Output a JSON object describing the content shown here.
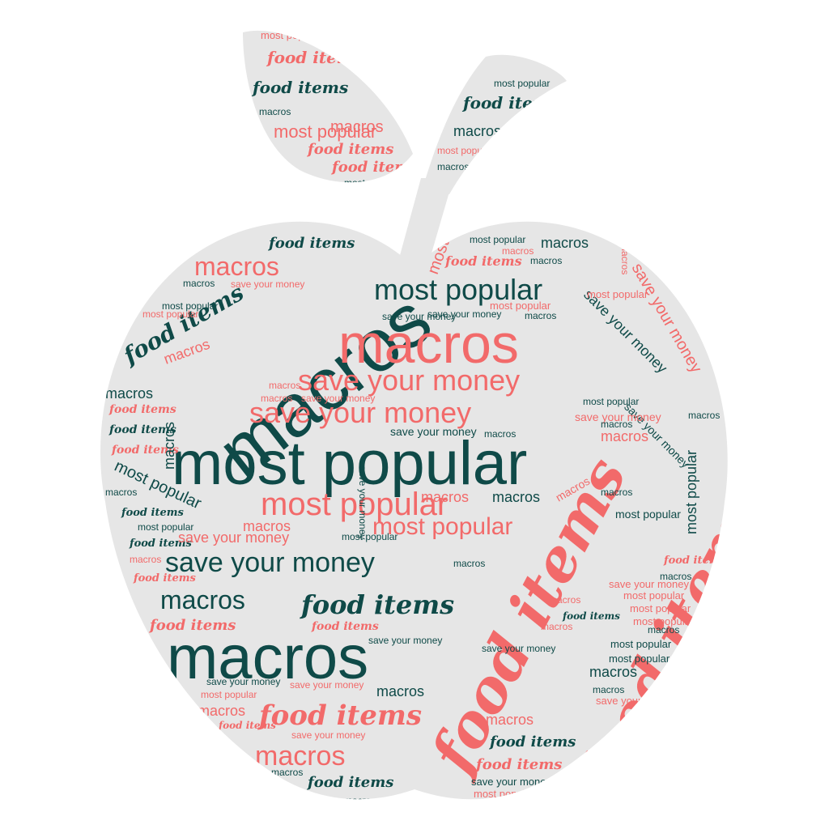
{
  "colors": {
    "background": "#ffffff",
    "shape_fill": "#e6e6e6",
    "dark": "#0f4a48",
    "coral": "#f26a6a"
  },
  "icons": [
    "apple-shape",
    "leaf-shape",
    "stem-shape"
  ],
  "words": {
    "w1": "macros",
    "w2": "most popular",
    "w3": "food items",
    "w4": "save your money"
  }
}
